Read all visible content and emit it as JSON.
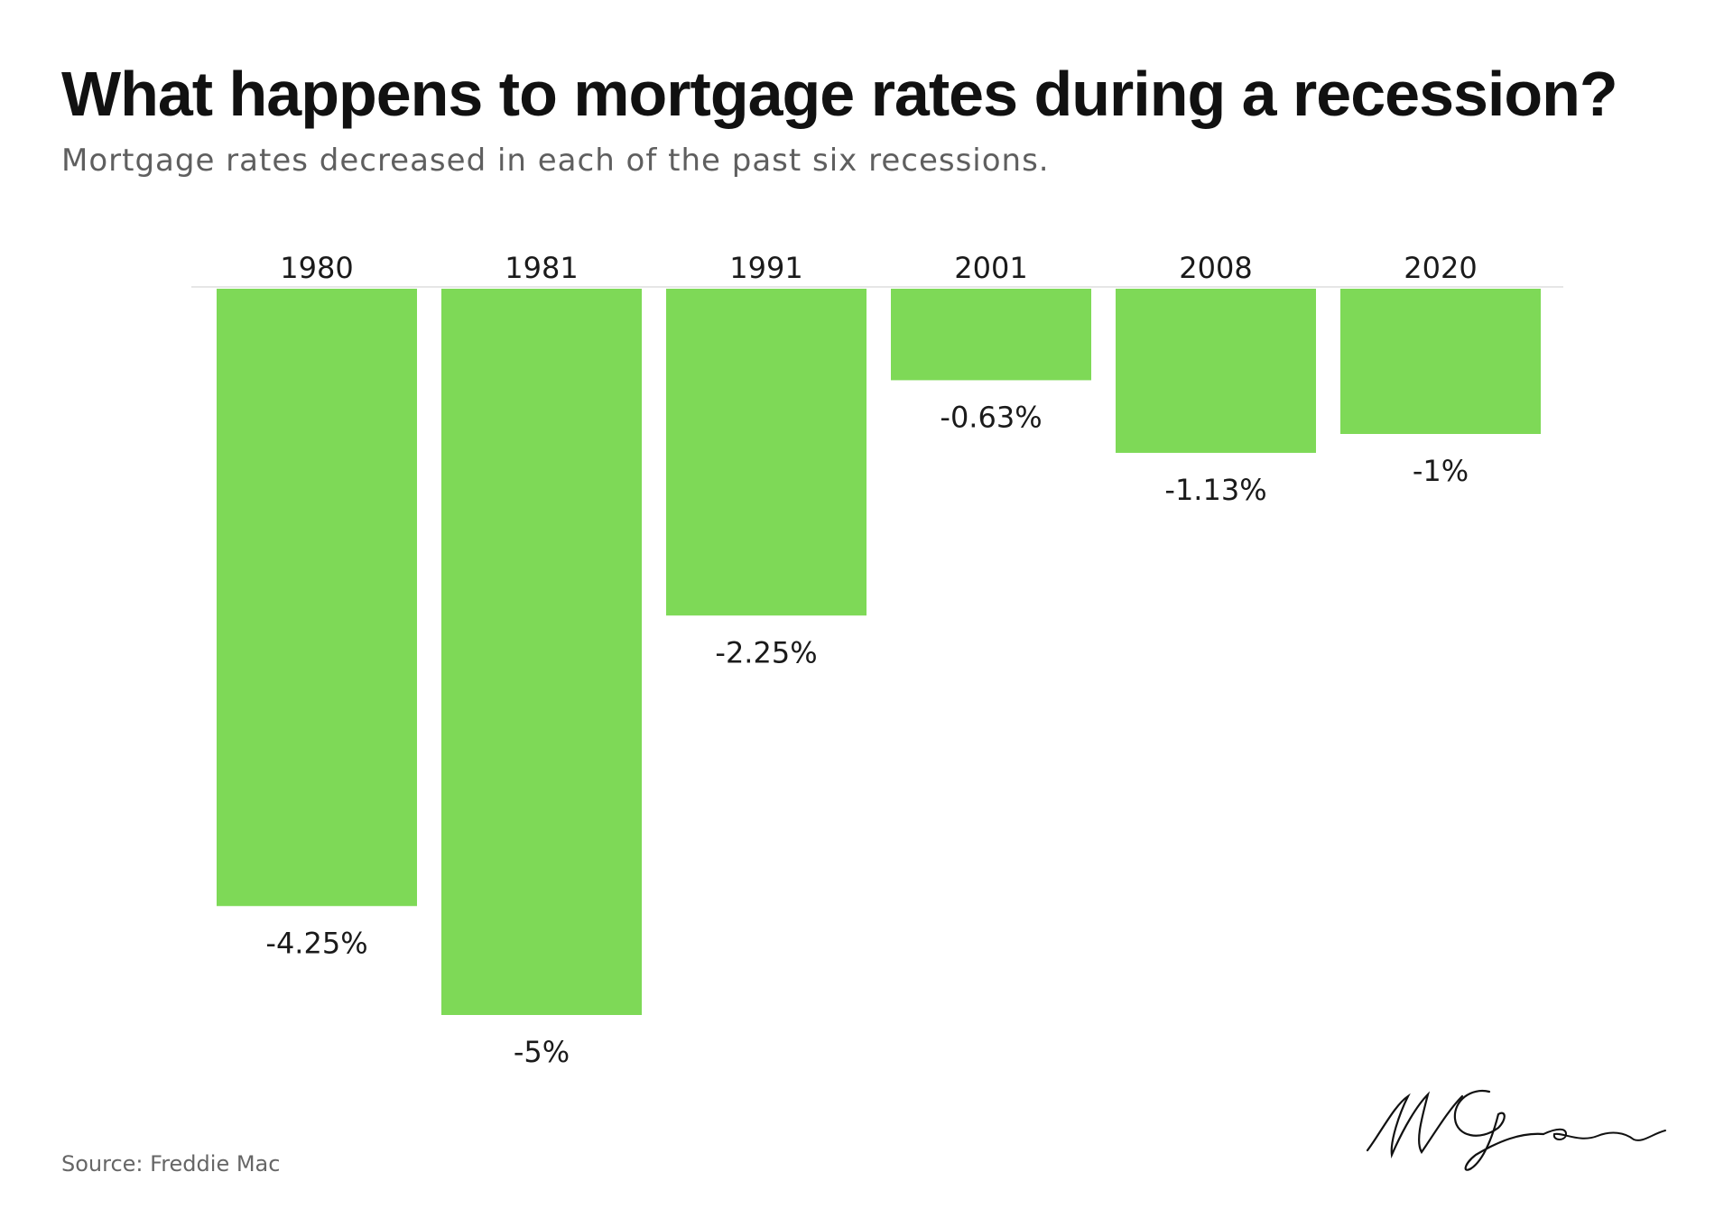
{
  "header": {
    "title": "What happens to mortgage rates during a recession?",
    "subtitle": "Mortgage rates decreased in each of the past six recessions."
  },
  "footer": {
    "source": "Source: Freddie Mac",
    "signature_text": "MG"
  },
  "colors": {
    "bar": "#7ed957",
    "baseline": "#e6e6e6"
  },
  "chart_data": {
    "type": "bar",
    "title": "What happens to mortgage rates during a recession?",
    "subtitle": "Mortgage rates decreased in each of the past six recessions.",
    "categories": [
      "1980",
      "1981",
      "1991",
      "2001",
      "2008",
      "2020"
    ],
    "values": [
      -4.25,
      -5,
      -2.25,
      -0.63,
      -1.13,
      -1
    ],
    "labels": [
      "-4.25%",
      "-5%",
      "-2.25%",
      "-0.63%",
      "-1.13%",
      "-1%"
    ],
    "xlabel": "",
    "ylabel": "",
    "ylim": [
      -5,
      0
    ],
    "category_axis_position": "top",
    "grid": false,
    "legend": "none"
  }
}
